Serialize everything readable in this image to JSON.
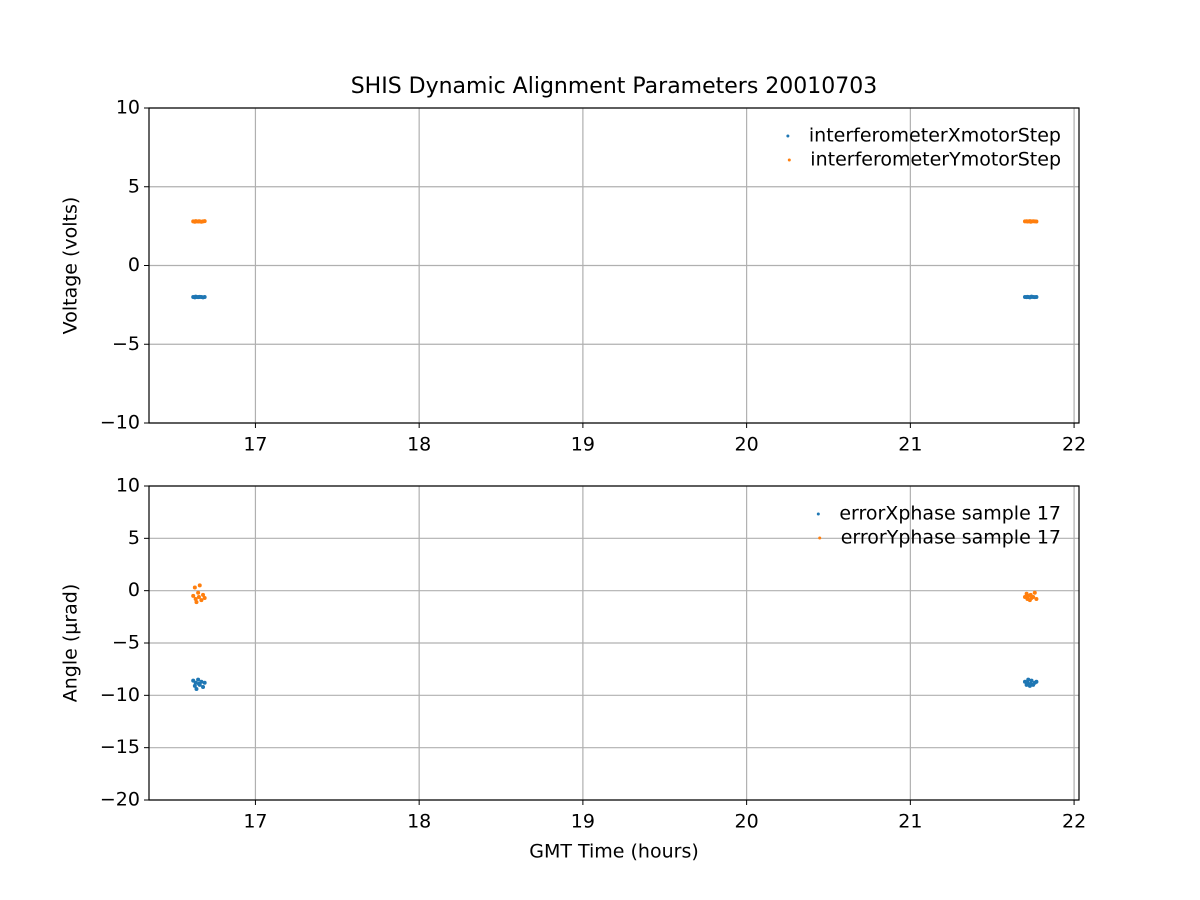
{
  "chart_data": [
    {
      "type": "scatter",
      "title": "SHIS Dynamic Alignment Parameters 20010703",
      "ylabel": "Voltage (volts)",
      "x": [
        16.62,
        16.63,
        16.635,
        16.64,
        16.65,
        16.655,
        16.66,
        16.67,
        16.68,
        16.69,
        21.7,
        21.71,
        21.715,
        21.72,
        21.73,
        21.735,
        21.74,
        21.75,
        21.76,
        21.77
      ],
      "series": [
        {
          "name": "interferometerXmotorStep",
          "color": "#1f77b4",
          "values": [
            -2.0,
            -2.02,
            -1.98,
            -2.0,
            -2.01,
            -2.0,
            -1.99,
            -2.0,
            -2.02,
            -2.0,
            -2.0,
            -2.01,
            -1.99,
            -2.0,
            -2.02,
            -2.0,
            -1.98,
            -2.0,
            -2.01,
            -2.0
          ]
        },
        {
          "name": "interferometerYmotorStep",
          "color": "#ff7f0e",
          "values": [
            2.8,
            2.78,
            2.82,
            2.8,
            2.79,
            2.81,
            2.8,
            2.78,
            2.8,
            2.82,
            2.8,
            2.81,
            2.79,
            2.8,
            2.82,
            2.78,
            2.8,
            2.81,
            2.8,
            2.79
          ]
        }
      ],
      "xlim": [
        16.35,
        22.03
      ],
      "xticks": [
        17,
        18,
        19,
        20,
        21,
        22
      ],
      "ylim": [
        -10,
        10
      ],
      "yticks": [
        {
          "value": -10,
          "label": "−10"
        },
        {
          "value": -5,
          "label": "−5"
        },
        0,
        5,
        10
      ],
      "grid": true,
      "legend": "upper right"
    },
    {
      "type": "scatter",
      "xlabel": "GMT Time (hours)",
      "ylabel": "Angle (μrad)",
      "x": [
        16.62,
        16.63,
        16.635,
        16.64,
        16.65,
        16.655,
        16.66,
        16.67,
        16.68,
        16.69,
        21.7,
        21.71,
        21.715,
        21.72,
        21.73,
        21.735,
        21.74,
        21.75,
        21.76,
        21.77
      ],
      "series": [
        {
          "name": "errorXphase sample 17",
          "color": "#1f77b4",
          "values": [
            -8.6,
            -9.1,
            -8.8,
            -9.4,
            -8.5,
            -8.9,
            -9.0,
            -8.7,
            -9.2,
            -8.8,
            -8.7,
            -9.0,
            -8.8,
            -8.5,
            -9.1,
            -8.9,
            -8.6,
            -9.0,
            -8.8,
            -8.7
          ]
        },
        {
          "name": "errorYphase sample 17",
          "color": "#ff7f0e",
          "values": [
            -0.5,
            0.3,
            -0.8,
            -1.1,
            -0.2,
            -0.6,
            0.5,
            -0.9,
            -0.4,
            -0.7,
            -0.6,
            -0.3,
            -0.8,
            -0.5,
            -0.9,
            -0.4,
            -0.7,
            -0.6,
            -0.2,
            -0.8
          ]
        }
      ],
      "xlim": [
        16.35,
        22.03
      ],
      "xticks": [
        17,
        18,
        19,
        20,
        21,
        22
      ],
      "ylim": [
        -20,
        10
      ],
      "yticks": [
        {
          "value": -20,
          "label": "−20"
        },
        {
          "value": -15,
          "label": "−15"
        },
        {
          "value": -10,
          "label": "−10"
        },
        {
          "value": -5,
          "label": "−5"
        },
        0,
        5,
        10
      ],
      "grid": true,
      "legend": "upper right"
    }
  ]
}
